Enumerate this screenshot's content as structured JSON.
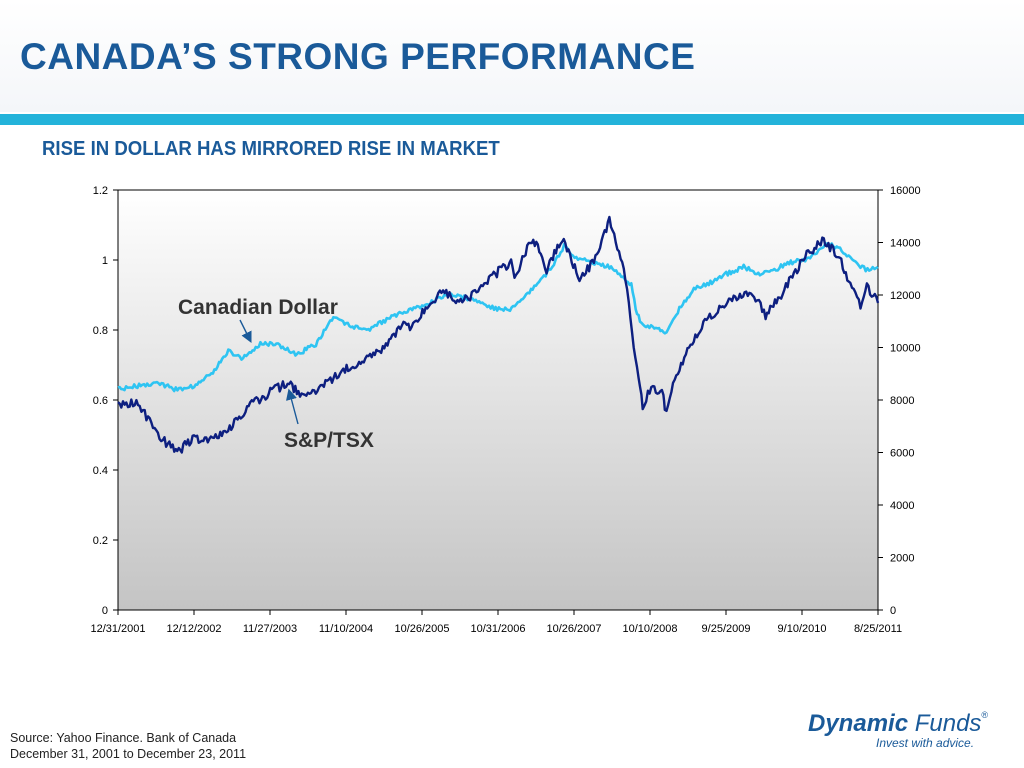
{
  "title": "CANADA’S STRONG PERFORMANCE",
  "subtitle": "RISE IN DOLLAR HAS MIRRORED RISE IN MARKET",
  "source": {
    "line1": "Source: Yahoo Finance.  Bank of Canada",
    "line2": "December 31, 2001 to December 23, 2011"
  },
  "logo": {
    "word1": "Dynamic",
    "word2": "Funds",
    "mark": "®",
    "tagline": "Invest with advice."
  },
  "colors": {
    "title": "#1a5a99",
    "rule": "#23b3da",
    "cad": "#2ec4f2",
    "tsx": "#0d1f80"
  },
  "chart_data": {
    "type": "line",
    "x_ticks": [
      "12/31/2001",
      "12/12/2002",
      "11/27/2003",
      "11/10/2004",
      "10/26/2005",
      "10/31/2006",
      "10/26/2007",
      "10/10/2008",
      "9/25/2009",
      "9/10/2010",
      "8/25/2011"
    ],
    "x_range": [
      "12/31/2001",
      "12/23/2011"
    ],
    "y_left": {
      "ticks": [
        "0",
        "0.2",
        "0.4",
        "0.6",
        "0.8",
        "1",
        "1.2"
      ],
      "range": [
        0,
        1.2
      ]
    },
    "y_right": {
      "ticks": [
        "0",
        "2000",
        "4000",
        "6000",
        "8000",
        "10000",
        "12000",
        "14000",
        "16000"
      ],
      "range": [
        0,
        16000
      ]
    },
    "grid": false,
    "background": "gradient-white-to-gray",
    "series": [
      {
        "name": "Canadian Dollar",
        "axis": "left",
        "color": "#2ec4f2",
        "x": [
          "12/31/2001",
          "6/28/2002",
          "10/4/2002",
          "12/31/2002",
          "3/31/2003",
          "6/13/2003",
          "8/15/2003",
          "11/14/2003",
          "1/30/2004",
          "5/7/2004",
          "8/6/2004",
          "10/29/2004",
          "1/21/2005",
          "4/22/2005",
          "6/10/2005",
          "8/19/2005",
          "11/18/2005",
          "1/13/2006",
          "4/14/2006",
          "6/9/2006",
          "10/13/2006",
          "12/8/2006",
          "3/2/2007",
          "5/11/2007",
          "7/20/2007",
          "9/21/2007",
          "11/9/2007",
          "12/21/2007",
          "2/8/2008",
          "4/11/2008",
          "6/13/2008",
          "8/1/2008",
          "9/26/2008",
          "10/17/2008",
          "11/21/2008",
          "1/30/2009",
          "3/6/2009",
          "5/15/2009",
          "7/31/2009",
          "9/25/2009",
          "12/25/2009",
          "3/19/2010",
          "5/28/2010",
          "8/13/2010",
          "10/8/2010",
          "12/31/2010",
          "3/4/2011",
          "4/29/2011",
          "6/24/2011",
          "8/12/2011",
          "9/30/2011",
          "11/11/2011",
          "12/23/2011"
        ],
        "y": [
          0.63,
          0.65,
          0.63,
          0.64,
          0.68,
          0.74,
          0.72,
          0.76,
          0.76,
          0.73,
          0.76,
          0.84,
          0.81,
          0.8,
          0.82,
          0.84,
          0.86,
          0.87,
          0.9,
          0.9,
          0.88,
          0.86,
          0.86,
          0.9,
          0.94,
          0.99,
          1.04,
          1.01,
          1.0,
          0.99,
          0.98,
          0.96,
          0.93,
          0.86,
          0.81,
          0.81,
          0.79,
          0.86,
          0.92,
          0.93,
          0.96,
          0.98,
          0.96,
          0.97,
          0.99,
          1.0,
          1.02,
          1.05,
          1.03,
          1.01,
          0.98,
          0.97,
          0.98
        ]
      },
      {
        "name": "S&P/TSX",
        "axis": "right",
        "color": "#0d1f80",
        "x": [
          "12/31/2001",
          "3/29/2002",
          "5/24/2002",
          "7/26/2002",
          "9/27/2002",
          "10/11/2002",
          "12/31/2002",
          "3/14/2003",
          "6/27/2003",
          "9/26/2003",
          "12/31/2003",
          "3/31/2004",
          "5/14/2004",
          "8/13/2004",
          "12/31/2004",
          "3/31/2005",
          "6/30/2005",
          "9/30/2005",
          "10/31/2005",
          "12/30/2005",
          "3/31/2006",
          "6/16/2006",
          "8/31/2006",
          "12/29/2006",
          "2/28/2007",
          "3/16/2007",
          "5/31/2007",
          "7/13/2007",
          "8/17/2007",
          "10/31/2007",
          "1/22/2008",
          "3/31/2008",
          "6/13/2008",
          "8/29/2008",
          "9/30/2008",
          "10/31/2008",
          "11/20/2008",
          "12/31/2008",
          "2/27/2009",
          "3/6/2009",
          "4/30/2009",
          "6/30/2009",
          "9/30/2009",
          "12/31/2009",
          "3/31/2010",
          "5/31/2010",
          "7/2/2010",
          "9/30/2010",
          "12/31/2010",
          "3/31/2011",
          "4/29/2011",
          "6/30/2011",
          "8/12/2011",
          "9/30/2011",
          "10/31/2011",
          "12/23/2011"
        ],
        "y": [
          7750,
          7900,
          7300,
          6500,
          6200,
          6000,
          6600,
          6400,
          7000,
          7800,
          8300,
          8700,
          8200,
          8400,
          9200,
          9600,
          10000,
          11000,
          10700,
          11300,
          12200,
          11700,
          12000,
          12900,
          13200,
          12700,
          14000,
          13800,
          12900,
          14200,
          12600,
          13300,
          14800,
          12700,
          10500,
          9000,
          7800,
          8500,
          8200,
          7500,
          8900,
          10100,
          11100,
          11700,
          12100,
          11800,
          11200,
          12200,
          13400,
          14100,
          13900,
          13300,
          12400,
          11600,
          12300,
          11700
        ]
      }
    ],
    "annotations": [
      {
        "label": "Canadian Dollar",
        "target": "Canadian Dollar"
      },
      {
        "label": "S&P/TSX",
        "target": "S&P/TSX"
      }
    ]
  }
}
